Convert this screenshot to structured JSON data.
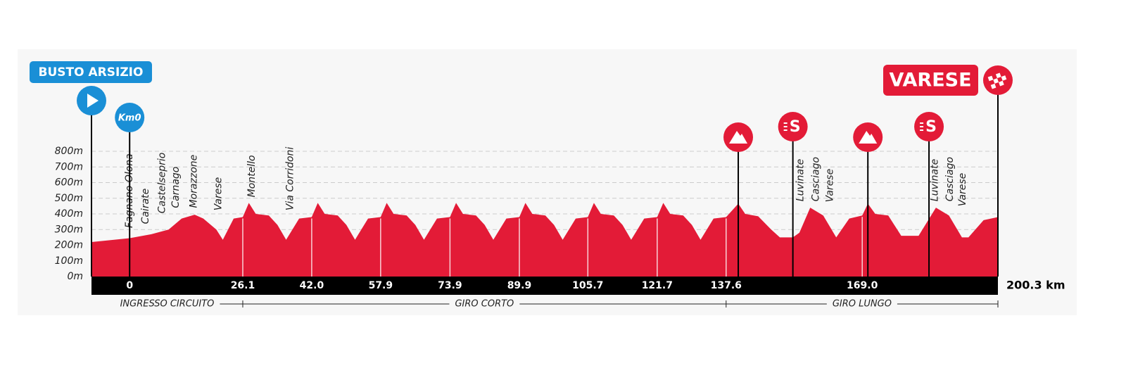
{
  "chart_data": {
    "type": "area",
    "start_label": "BUSTO ARSIZIO",
    "finish_label": "VARESE",
    "km0_label": "Km0",
    "sprint_symbol": "S",
    "color": "#e31b37",
    "x": [
      -8.8,
      0,
      5,
      9,
      12,
      15,
      17,
      20,
      21.5,
      24,
      26.1,
      27.5,
      29.1,
      32.1,
      34.1,
      36.1,
      39.1,
      42.0,
      43.4,
      45.0,
      48.0,
      50.0,
      52.0,
      55.0,
      57.9,
      59.3,
      60.9,
      63.9,
      65.9,
      67.9,
      70.9,
      73.9,
      75.3,
      76.9,
      79.9,
      81.9,
      83.9,
      86.9,
      89.9,
      91.3,
      92.9,
      95.9,
      97.9,
      99.9,
      102.9,
      105.7,
      107.1,
      108.7,
      111.7,
      113.7,
      115.7,
      118.7,
      121.7,
      123.1,
      124.7,
      127.7,
      129.7,
      131.7,
      134.7,
      137.6,
      140.4,
      142,
      145,
      148,
      150,
      153,
      154.5,
      157,
      160,
      163,
      166,
      169.0,
      170.3,
      172,
      175,
      178,
      182,
      186,
      189,
      192,
      193.5,
      197,
      200.3
    ],
    "values": [
      220,
      245,
      270,
      300,
      370,
      395,
      370,
      300,
      235,
      370,
      380,
      470,
      400,
      390,
      330,
      235,
      370,
      380,
      470,
      400,
      390,
      330,
      235,
      370,
      380,
      470,
      400,
      390,
      330,
      235,
      370,
      380,
      470,
      400,
      390,
      330,
      235,
      370,
      380,
      470,
      400,
      390,
      330,
      235,
      370,
      380,
      470,
      400,
      390,
      330,
      235,
      370,
      380,
      470,
      400,
      390,
      330,
      235,
      370,
      380,
      465,
      400,
      385,
      300,
      250,
      250,
      280,
      440,
      390,
      250,
      370,
      390,
      465,
      400,
      390,
      260,
      260,
      440,
      390,
      250,
      250,
      360,
      380
    ],
    "xlim": [
      -8.8,
      200.3
    ],
    "xticks": [
      0,
      26.1,
      {
        "value": 42,
        "label": "42.0"
      },
      57.9,
      73.9,
      89.9,
      105.7,
      121.7,
      137.6,
      {
        "value": 169,
        "label": "169.0"
      },
      {
        "value": 200.3,
        "label": "200.3 km"
      }
    ],
    "ylim": [
      0,
      800
    ],
    "yticks": [
      {
        "value": 0,
        "label": "0m"
      },
      {
        "value": 100,
        "label": "100m"
      },
      {
        "value": 200,
        "label": "200m"
      },
      {
        "value": 300,
        "label": "300m"
      },
      {
        "value": 400,
        "label": "400m"
      },
      {
        "value": 500,
        "label": "500m"
      },
      {
        "value": 600,
        "label": "600m"
      },
      {
        "value": 700,
        "label": "700m"
      },
      {
        "value": 800,
        "label": "800m"
      }
    ],
    "grid": true,
    "climbs": [
      140.4,
      170.3
    ],
    "sprints": [
      153.0,
      184.4
    ],
    "places": [
      {
        "label": "Fagnano Olona",
        "km": 0
      },
      {
        "label": "Cairate",
        "km": 3.7
      },
      {
        "label": "Castelseprio",
        "km": 7.5
      },
      {
        "label": "Carnago",
        "km": 10.7
      },
      {
        "label": "Morazzone",
        "km": 14.8
      },
      {
        "label": "Varese",
        "km": 20.5
      },
      {
        "label": "Montello",
        "km": 28.2
      },
      {
        "label": "Via Corridoni",
        "km": 37.1
      },
      {
        "label": "Luvinate",
        "km": 154.8
      },
      {
        "label": "Casciago",
        "km": 158.3
      },
      {
        "label": "Varese",
        "km": 161.6
      },
      {
        "label": "Luvinate",
        "km": 185.8
      },
      {
        "label": "Casciago",
        "km": 189.3
      },
      {
        "label": "Varese",
        "km": 192.2
      }
    ],
    "sections": [
      {
        "label": "INGRESSO CIRCUITO",
        "to": 26.1
      },
      {
        "label": "GIRO CORTO",
        "to": 137.6
      },
      {
        "label": "GIRO LUNGO",
        "to": 200.3
      }
    ]
  }
}
